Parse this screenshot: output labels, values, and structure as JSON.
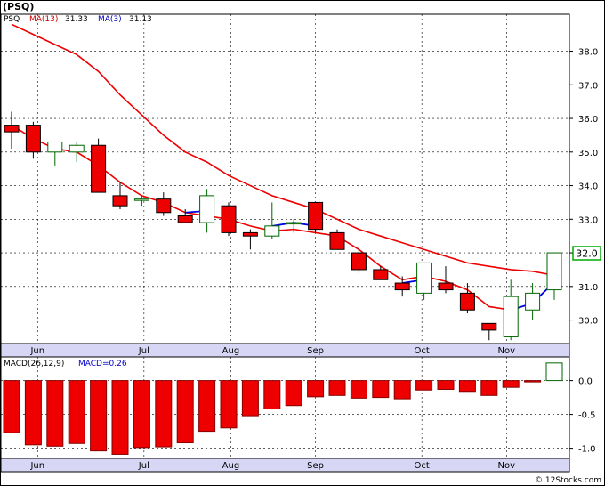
{
  "title": "(PSQ)",
  "watermark": "© 12Stocks.com",
  "chart_data": [
    {
      "type": "candlestick",
      "legend": {
        "symbol": "PSQ",
        "ma13_label": "MA(13)",
        "ma13_value": "31.33",
        "ma3_label": "MA(3)",
        "ma3_value": "31.13"
      },
      "price_badge": "32.0",
      "ylim": [
        29.3,
        39.1
      ],
      "y_ticks": [
        30,
        31,
        32,
        33,
        34,
        35,
        36,
        37,
        38
      ],
      "y_tick_labels": [
        "30.0",
        "31.0",
        "32.0",
        "33.0",
        "34.0",
        "35.0",
        "36.0",
        "37.0",
        "38.0"
      ],
      "months": [
        "Jun",
        "Jul",
        "Aug",
        "Sep",
        "Oct",
        "Nov"
      ],
      "month_positions": [
        1.2,
        6.1,
        10.1,
        14.0,
        18.9,
        22.8
      ],
      "candles": [
        {
          "o": 35.8,
          "h": 36.2,
          "l": 35.1,
          "c": 35.6
        },
        {
          "o": 35.8,
          "h": 35.9,
          "l": 34.8,
          "c": 35.0
        },
        {
          "o": 35.0,
          "h": 35.3,
          "l": 34.6,
          "c": 35.3
        },
        {
          "o": 35.0,
          "h": 35.3,
          "l": 34.7,
          "c": 35.2
        },
        {
          "o": 35.2,
          "h": 35.4,
          "l": 33.8,
          "c": 33.8
        },
        {
          "o": 33.7,
          "h": 34.1,
          "l": 33.3,
          "c": 33.4
        },
        {
          "o": 33.6,
          "h": 33.7,
          "l": 33.4,
          "c": 33.6
        },
        {
          "o": 33.6,
          "h": 33.8,
          "l": 33.1,
          "c": 33.2
        },
        {
          "o": 33.1,
          "h": 33.3,
          "l": 32.9,
          "c": 32.9
        },
        {
          "o": 32.9,
          "h": 33.9,
          "l": 32.6,
          "c": 33.7
        },
        {
          "o": 33.4,
          "h": 33.5,
          "l": 32.5,
          "c": 32.6
        },
        {
          "o": 32.6,
          "h": 32.7,
          "l": 32.1,
          "c": 32.5
        },
        {
          "o": 32.5,
          "h": 33.5,
          "l": 32.4,
          "c": 32.8
        },
        {
          "o": 32.9,
          "h": 33.0,
          "l": 32.6,
          "c": 32.9
        },
        {
          "o": 33.5,
          "h": 33.5,
          "l": 32.6,
          "c": 32.7
        },
        {
          "o": 32.6,
          "h": 32.7,
          "l": 32.1,
          "c": 32.1
        },
        {
          "o": 32.0,
          "h": 32.2,
          "l": 31.4,
          "c": 31.5
        },
        {
          "o": 31.5,
          "h": 31.6,
          "l": 31.2,
          "c": 31.2
        },
        {
          "o": 31.1,
          "h": 31.3,
          "l": 30.7,
          "c": 30.9
        },
        {
          "o": 30.8,
          "h": 31.7,
          "l": 30.6,
          "c": 31.7
        },
        {
          "o": 31.1,
          "h": 31.6,
          "l": 30.8,
          "c": 30.9
        },
        {
          "o": 30.8,
          "h": 31.1,
          "l": 30.2,
          "c": 30.3
        },
        {
          "o": 29.9,
          "h": 29.9,
          "l": 29.4,
          "c": 29.7
        },
        {
          "o": 29.5,
          "h": 31.2,
          "l": 29.4,
          "c": 30.7
        },
        {
          "o": 30.3,
          "h": 31.1,
          "l": 30.0,
          "c": 30.8
        },
        {
          "o": 30.9,
          "h": 32.0,
          "l": 30.6,
          "c": 32.0
        }
      ],
      "ma13": [
        [
          0,
          38.8
        ],
        [
          1,
          38.5
        ],
        [
          2,
          38.2
        ],
        [
          3,
          37.9
        ],
        [
          4,
          37.4
        ],
        [
          5,
          36.7
        ],
        [
          6,
          36.1
        ],
        [
          7,
          35.5
        ],
        [
          8,
          35.0
        ],
        [
          9,
          34.7
        ],
        [
          10,
          34.3
        ],
        [
          11,
          34.0
        ],
        [
          12,
          33.7
        ],
        [
          13,
          33.5
        ],
        [
          14,
          33.3
        ],
        [
          15,
          33.0
        ],
        [
          16,
          32.7
        ],
        [
          17,
          32.5
        ],
        [
          18,
          32.3
        ],
        [
          19,
          32.1
        ],
        [
          20,
          31.9
        ],
        [
          21,
          31.7
        ],
        [
          22,
          31.6
        ],
        [
          23,
          31.5
        ],
        [
          24,
          31.45
        ],
        [
          25,
          31.33
        ]
      ],
      "ma3_blue_segments": [
        [
          [
            8,
            33.2
          ],
          [
            9,
            33.25
          ]
        ],
        [
          [
            12,
            32.8
          ],
          [
            13,
            32.9
          ],
          [
            14,
            32.8
          ]
        ],
        [
          [
            18,
            31.1
          ],
          [
            19,
            31.2
          ]
        ],
        [
          [
            23,
            30.3
          ],
          [
            24,
            30.5
          ],
          [
            25,
            31.13
          ]
        ]
      ],
      "ma3_red": [
        [
          0,
          35.8
        ],
        [
          1,
          35.4
        ],
        [
          2,
          35.1
        ],
        [
          3,
          35.0
        ],
        [
          4,
          34.6
        ],
        [
          5,
          34.1
        ],
        [
          6,
          33.7
        ],
        [
          7,
          33.5
        ],
        [
          8,
          33.2
        ],
        [
          9,
          33.1
        ],
        [
          10,
          33.0
        ],
        [
          11,
          32.8
        ],
        [
          12,
          32.65
        ],
        [
          13,
          32.7
        ],
        [
          14,
          32.6
        ],
        [
          15,
          32.5
        ],
        [
          16,
          32.1
        ],
        [
          17,
          31.6
        ],
        [
          18,
          31.2
        ],
        [
          19,
          31.3
        ],
        [
          20,
          31.15
        ],
        [
          21,
          30.9
        ],
        [
          22,
          30.4
        ],
        [
          23,
          30.3
        ]
      ]
    },
    {
      "type": "bar",
      "legend": {
        "label": "MACD(26,12,9)",
        "value_label": "MACD=0.26"
      },
      "ylim": [
        -1.15,
        0.35
      ],
      "y_ticks": [
        0.0,
        -0.5,
        -1.0
      ],
      "y_tick_labels": [
        "0.0",
        "-0.5",
        "-1.0"
      ],
      "months": [
        "Jun",
        "Jul",
        "Aug",
        "Sep",
        "Oct",
        "Nov"
      ],
      "values": [
        -0.77,
        -0.95,
        -0.97,
        -0.93,
        -1.04,
        -1.09,
        -0.99,
        -0.98,
        -0.92,
        -0.75,
        -0.7,
        -0.52,
        -0.42,
        -0.37,
        -0.24,
        -0.22,
        -0.26,
        -0.25,
        -0.27,
        -0.14,
        -0.13,
        -0.16,
        -0.22,
        -0.1,
        -0.02,
        0.26
      ]
    }
  ]
}
